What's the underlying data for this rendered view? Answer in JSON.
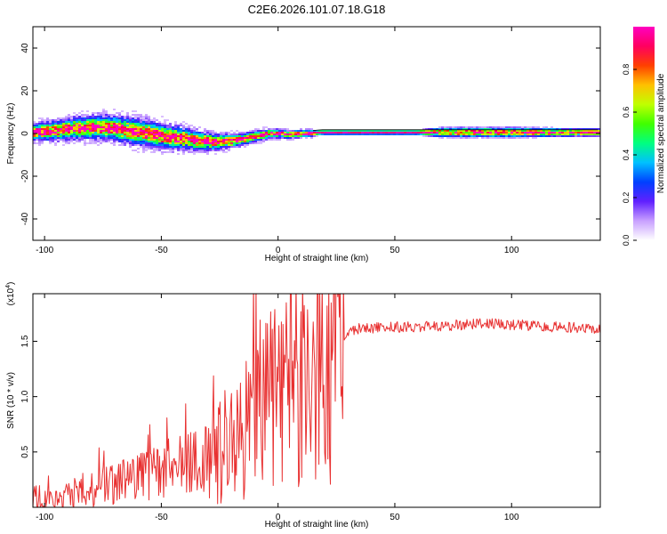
{
  "chart_data": [
    {
      "type": "heatmap",
      "title": "C2E6.2026.101.07.18.G18",
      "xlabel": "Height of straight line (km)",
      "ylabel": "Frequency (Hz)",
      "xlim": [
        -105,
        138
      ],
      "ylim": [
        -50,
        50
      ],
      "x_ticks": [
        -100,
        -50,
        0,
        50,
        100
      ],
      "x_tick_labels": [
        "-100",
        "-50",
        "0",
        "50",
        "100"
      ],
      "y_ticks": [
        40,
        20,
        0,
        -20,
        -40
      ],
      "y_tick_labels": [
        "40",
        "20",
        "0",
        "-20",
        "-40"
      ],
      "colorbar": {
        "label": "Normalized spectral amplitude",
        "range": [
          0,
          1
        ],
        "ticks": [
          0.0,
          0.2,
          0.4,
          0.6,
          0.8
        ],
        "tick_labels": [
          "0.0",
          "0.2",
          "0.4",
          "0.6",
          "0.8"
        ],
        "colormap": [
          "#ffffff",
          "#c8a0ff",
          "#6020ff",
          "#0040ff",
          "#00c0ff",
          "#00ff80",
          "#40ff00",
          "#c0ff00",
          "#ffc000",
          "#ff4000",
          "#ff0060",
          "#ff00c0"
        ]
      },
      "ridge_frequency": {
        "x": [
          -105,
          -95,
          -85,
          -78,
          -70,
          -62,
          -55,
          -48,
          -40,
          -33,
          -27,
          -20,
          -14,
          -8,
          -3,
          0,
          5,
          10,
          14,
          18,
          25,
          40,
          60,
          80,
          100,
          120,
          138
        ],
        "freq": [
          0.5,
          1.5,
          2.5,
          3.0,
          2.5,
          1.0,
          0.0,
          -1.5,
          -2.5,
          -3.5,
          -4.0,
          -3.5,
          -2.5,
          -1.0,
          0.0,
          0.0,
          -0.5,
          0.0,
          0.0,
          0.5,
          0.5,
          0.5,
          0.5,
          0.5,
          0.5,
          0.5,
          0.5
        ]
      },
      "ridge_halfwidth": {
        "x": [
          -105,
          -80,
          -60,
          -45,
          -30,
          -15,
          0,
          15,
          20,
          60,
          70,
          100,
          138
        ],
        "halfwidth": [
          3.0,
          4.0,
          4.5,
          4.0,
          3.0,
          2.0,
          1.5,
          1.2,
          1.0,
          1.0,
          2.0,
          2.0,
          1.5
        ]
      }
    },
    {
      "type": "line",
      "title": "",
      "xlabel": "Height of straight line (km)",
      "ylabel": "SNR (10 * v/v)",
      "multiplier_label": "(x10",
      "multiplier_exp": "4",
      "multiplier_close": ")",
      "xlim": [
        -105,
        138
      ],
      "ylim": [
        0.0,
        1.93
      ],
      "x_ticks": [
        -100,
        -50,
        0,
        50,
        100
      ],
      "x_tick_labels": [
        "-100",
        "-50",
        "0",
        "50",
        "100"
      ],
      "y_ticks": [
        0.5,
        1.0,
        1.5
      ],
      "y_tick_labels": [
        "0.5",
        "1.0",
        "1.5"
      ],
      "color": "#e83030",
      "series": [
        {
          "name": "SNR",
          "x": [
            -105,
            -100,
            -95,
            -90,
            -85,
            -80,
            -75,
            -70,
            -65,
            -60,
            -55,
            -50,
            -45,
            -40,
            -35,
            -30,
            -25,
            -20,
            -15,
            -10,
            -5,
            0,
            5,
            10,
            13,
            14,
            15,
            16,
            20,
            25,
            30,
            35,
            40,
            50,
            60,
            70,
            80,
            90,
            100,
            110,
            120,
            130,
            138
          ],
          "y": [
            0.04,
            0.05,
            0.07,
            0.1,
            0.13,
            0.16,
            0.18,
            0.21,
            0.24,
            0.27,
            0.29,
            0.32,
            0.35,
            0.38,
            0.42,
            0.46,
            0.52,
            0.6,
            0.7,
            0.8,
            0.9,
            1.0,
            1.08,
            1.15,
            1.25,
            0.5,
            1.75,
            1.1,
            1.25,
            1.45,
            1.58,
            1.62,
            1.62,
            1.63,
            1.63,
            1.64,
            1.65,
            1.66,
            1.65,
            1.64,
            1.63,
            1.62,
            1.61
          ]
        }
      ]
    }
  ]
}
